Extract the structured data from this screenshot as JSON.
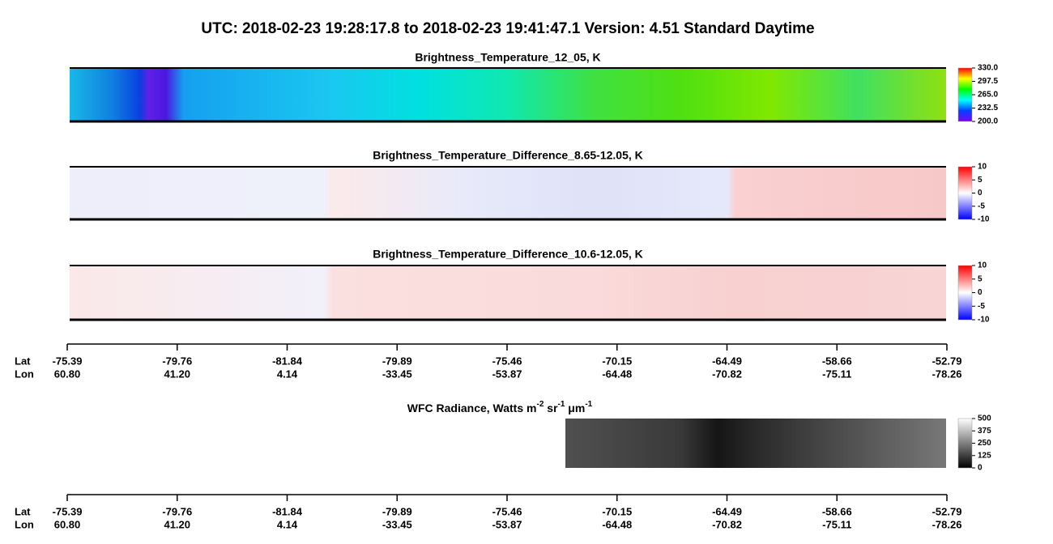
{
  "title": "UTC:  2018-02-23   19:28:17.8  to  2018-02-23   19:41:47.1    Version: 4.51  Standard Daytime",
  "chart_data": [
    {
      "type": "heatmap",
      "title": "Brightness_Temperature_12_05, K",
      "clim": [
        200,
        330
      ],
      "cticks": [
        {
          "value": 330,
          "label": "330.0"
        },
        {
          "value": 297.5,
          "label": "297.5"
        },
        {
          "value": 265,
          "label": "265.0"
        },
        {
          "value": 232.5,
          "label": "232.5"
        },
        {
          "value": 200,
          "label": "200.0"
        }
      ]
    },
    {
      "type": "heatmap",
      "title": "Brightness_Temperature_Difference_8.65-12.05, K",
      "clim": [
        -10,
        10
      ],
      "cticks": [
        10,
        5,
        0,
        -5,
        -10
      ]
    },
    {
      "type": "heatmap",
      "title": "Brightness_Temperature_Difference_10.6-12.05, K",
      "clim": [
        -10,
        10
      ],
      "cticks": [
        10,
        5,
        0,
        -5,
        -10
      ]
    },
    {
      "type": "heatmap",
      "title_parts": [
        "WFC Radiance, Watts m",
        "-2",
        " sr",
        "-1",
        " μm",
        "-1"
      ],
      "clim": [
        0,
        500
      ],
      "cticks": [
        500,
        375,
        250,
        125,
        0
      ]
    }
  ],
  "axes": [
    {
      "rows": [
        {
          "name": "Lat",
          "labels": [
            "-75.39",
            "-79.76",
            "-81.84",
            "-79.89",
            "-75.46",
            "-70.15",
            "-64.49",
            "-58.66",
            "-52.79"
          ]
        },
        {
          "name": "Lon",
          "labels": [
            "60.80",
            "41.20",
            "4.14",
            "-33.45",
            "-53.87",
            "-64.48",
            "-70.82",
            "-75.11",
            "-78.26"
          ]
        }
      ]
    },
    {
      "rows": [
        {
          "name": "Lat",
          "labels": [
            "-75.39",
            "-79.76",
            "-81.84",
            "-79.89",
            "-75.46",
            "-70.15",
            "-64.49",
            "-58.66",
            "-52.79"
          ]
        },
        {
          "name": "Lon",
          "labels": [
            "60.80",
            "41.20",
            "4.14",
            "-33.45",
            "-53.87",
            "-64.48",
            "-70.82",
            "-75.11",
            "-78.26"
          ]
        }
      ]
    }
  ]
}
